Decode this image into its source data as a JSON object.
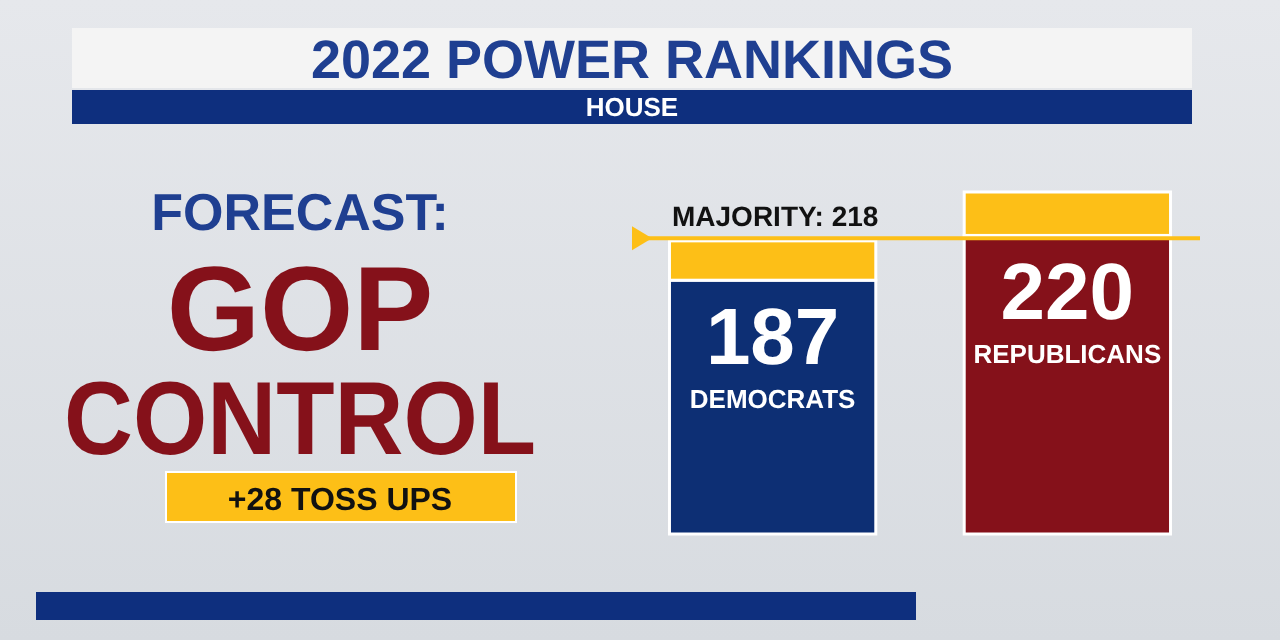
{
  "chart_data": {
    "type": "bar",
    "title": "2022 POWER RANKINGS",
    "subtitle": "HOUSE",
    "categories": [
      "DEMOCRATS",
      "REPUBLICANS"
    ],
    "stacked": true,
    "series": [
      {
        "colors": [
          "#0d2f74",
          "#85111a"
        ],
        "values": [
          187,
          220
        ],
        "value_labels": [
          "187",
          "220"
        ]
      },
      {
        "color": "#fdbf17",
        "values": [
          29,
          32
        ]
      }
    ],
    "ref_lines": [
      {
        "axis": "y",
        "value": 218,
        "label": "MAJORITY: 218",
        "color": "#fdbf17"
      }
    ],
    "annotations": [
      "FORECAST:",
      "GOP CONTROL",
      "+28 TOSS UPS"
    ]
  }
}
